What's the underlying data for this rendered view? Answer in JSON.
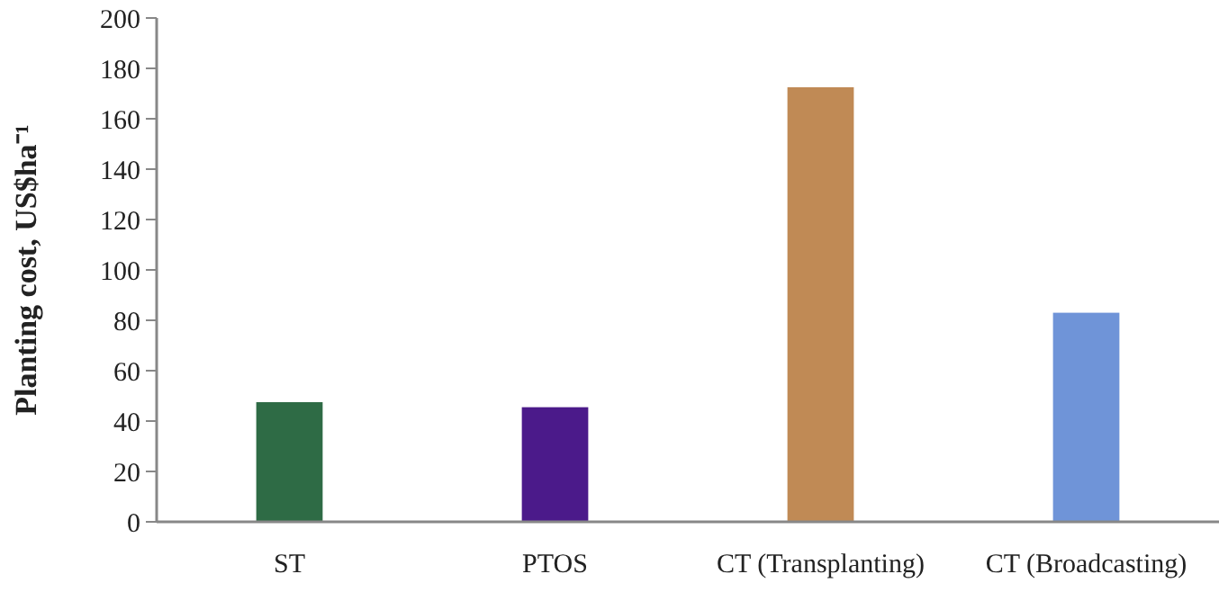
{
  "chart_data": {
    "type": "bar",
    "ylabel": "Planting cost, US$ha⁻¹",
    "categories": [
      "ST",
      "PTOS",
      "CT (Transplanting)",
      "CT (Broadcasting)"
    ],
    "values": [
      47.5,
      45.5,
      172.5,
      83
    ],
    "colors": [
      "#2e6b45",
      "#4b1a8a",
      "#c08a55",
      "#6f94d8"
    ],
    "ylim": [
      0,
      200
    ],
    "yticks": [
      0,
      20,
      40,
      60,
      80,
      100,
      120,
      140,
      160,
      180,
      200
    ],
    "grid": false
  }
}
